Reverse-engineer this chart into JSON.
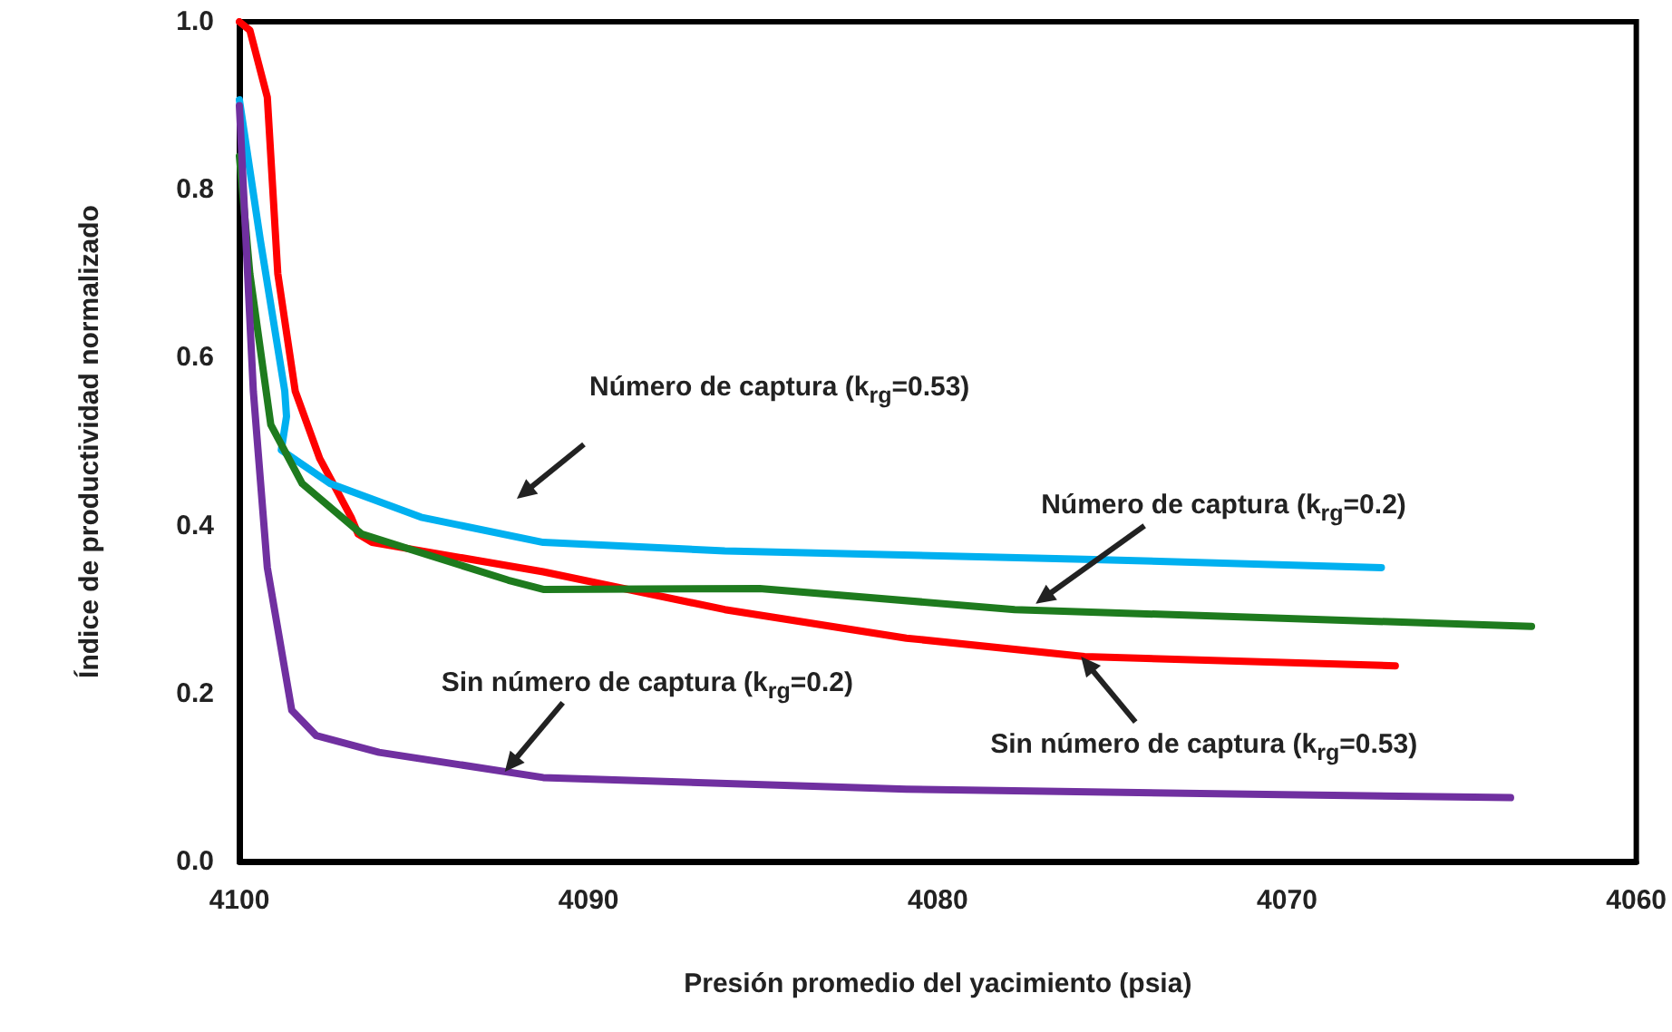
{
  "chart_data": {
    "type": "line",
    "xlabel": "Presión promedio del yacimiento (psia)",
    "ylabel": "Índice de productividad normalizado",
    "xlim": [
      4100,
      4060
    ],
    "xticks": [
      4100,
      4090,
      4080,
      4070,
      4060
    ],
    "ylim": [
      0,
      1
    ],
    "yticks": [
      {
        "value": 0,
        "label": "0.0"
      },
      0.2,
      0.4,
      0.6,
      0.8,
      {
        "value": 1,
        "label": "1.0"
      }
    ],
    "grid": false,
    "marker": "none",
    "line_style": "solid",
    "series": [
      {
        "color": "#ff0000",
        "x": [
          4100,
          4099.7,
          4099.2,
          4098.9,
          4098.4,
          4097.7,
          4096.8,
          4096.6,
          4096.2,
          4091.3,
          4086.1,
          4080.9,
          4075.8,
          4066.9
        ],
        "values": [
          1.0,
          0.99,
          0.91,
          0.7,
          0.56,
          0.48,
          0.41,
          0.39,
          0.38,
          0.345,
          0.3,
          0.266,
          0.244,
          0.233
        ]
      },
      {
        "color": "#00b0f0",
        "x": [
          4100,
          4099.4,
          4098.7,
          4098.65,
          4098.8,
          4097.4,
          4094.8,
          4091.3,
          4086.1,
          4075.8,
          4067.3
        ],
        "values": [
          0.907,
          0.74,
          0.56,
          0.53,
          0.49,
          0.45,
          0.41,
          0.38,
          0.37,
          0.36,
          0.35
        ]
      },
      {
        "color": "#1e7b1e",
        "x": [
          4100,
          4099.7,
          4099.1,
          4098.2,
          4096.5,
          4092.3,
          4091.3,
          4085.1,
          4077.8,
          4063
        ],
        "values": [
          0.84,
          0.7,
          0.52,
          0.45,
          0.39,
          0.335,
          0.324,
          0.325,
          0.3,
          0.28
        ]
      },
      {
        "color": "#7030a0",
        "x": [
          4100,
          4099.6,
          4099.2,
          4098.5,
          4097.8,
          4096,
          4091.3,
          4080.9,
          4070.6,
          4063.6
        ],
        "values": [
          0.9,
          0.56,
          0.35,
          0.18,
          0.15,
          0.13,
          0.1,
          0.086,
          0.08,
          0.076
        ]
      }
    ],
    "annotations": [
      "Número de captura (k$_{rg}$=0.53)",
      {
        "text": "Número de captura (k$_{rg}$=0.2)",
        "x": 4077.2,
        "y": 0.307
      },
      {
        "text": "Sin número de captura (k$_{rg}$=0.2)",
        "x": 4092.4,
        "y": 0.107
      },
      {
        "text": "Sin número de captura (k$_{rg}$=0.53)",
        "x": 4075.9,
        "y": 0.244
      }
    ]
  }
}
